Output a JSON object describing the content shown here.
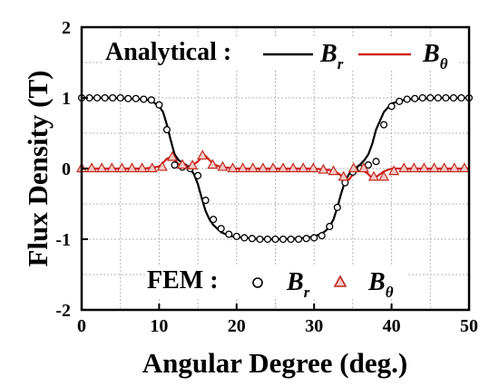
{
  "chart_data": {
    "type": "line",
    "xlabel": "Angular Degree (deg.)",
    "ylabel": "Flux Density (T)",
    "xlim": [
      0,
      50
    ],
    "ylim": [
      -2,
      2
    ],
    "xticks": [
      0,
      10,
      20,
      30,
      40,
      50
    ],
    "yticks": [
      2,
      1,
      0,
      -1,
      -2
    ],
    "grid": true,
    "legend": {
      "analytical_label": "Analytical :",
      "fem_label": "FEM :",
      "entries": [
        {
          "symbol": "B",
          "subscript": "r",
          "color": "#000000",
          "kind": "line"
        },
        {
          "symbol": "B",
          "subscript": "θ",
          "color": "#d0201c",
          "kind": "line"
        },
        {
          "symbol": "B",
          "subscript": "r",
          "color": "#000000",
          "kind": "circle"
        },
        {
          "symbol": "B",
          "subscript": "θ",
          "color": "#c0281c",
          "kind": "triangle"
        }
      ]
    },
    "series": [
      {
        "kind": "analytical-line",
        "color": "#000000",
        "x": [
          0,
          2,
          4,
          6,
          8,
          9,
          10,
          10.5,
          11,
          11.5,
          12,
          12.5,
          13,
          13.5,
          14,
          14.5,
          15,
          15.5,
          16,
          16.5,
          17,
          18,
          19,
          20,
          22,
          24,
          26,
          28,
          29,
          30,
          31,
          31.5,
          32,
          32.5,
          33,
          33.5,
          34,
          34.5,
          35,
          35.5,
          36,
          36.5,
          37,
          37.5,
          38,
          39,
          40,
          42,
          44,
          46,
          48,
          50
        ],
        "y": [
          1.0,
          1.0,
          1.0,
          0.99,
          0.98,
          0.96,
          0.88,
          0.8,
          0.62,
          0.4,
          0.2,
          0.12,
          0.08,
          0.05,
          0.0,
          -0.08,
          -0.22,
          -0.42,
          -0.6,
          -0.72,
          -0.8,
          -0.9,
          -0.95,
          -0.97,
          -0.99,
          -1.0,
          -1.0,
          -0.99,
          -0.98,
          -0.96,
          -0.92,
          -0.88,
          -0.82,
          -0.72,
          -0.55,
          -0.35,
          -0.18,
          -0.08,
          0.0,
          0.02,
          0.06,
          0.12,
          0.2,
          0.35,
          0.55,
          0.8,
          0.92,
          0.98,
          0.99,
          1.0,
          1.0,
          1.0
        ]
      },
      {
        "kind": "analytical-line",
        "color": "#d0201c",
        "x": [
          0,
          4,
          8,
          9,
          10,
          10.5,
          11,
          11.5,
          12,
          12.5,
          13,
          13.5,
          14,
          14.5,
          15,
          15.5,
          16,
          16.5,
          17,
          18,
          20,
          24,
          28,
          30,
          32,
          33,
          33.5,
          34,
          34.5,
          35,
          35.5,
          36,
          36.5,
          37,
          37.5,
          38,
          38.5,
          39,
          40,
          42,
          46,
          50
        ],
        "y": [
          0.0,
          0.0,
          0.0,
          0.01,
          0.03,
          0.08,
          0.14,
          0.16,
          0.12,
          0.06,
          0.05,
          0.04,
          0.02,
          0.06,
          0.1,
          0.16,
          0.18,
          0.12,
          0.06,
          0.02,
          0.0,
          0.0,
          0.0,
          0.0,
          -0.02,
          -0.06,
          -0.1,
          -0.14,
          -0.16,
          -0.08,
          -0.02,
          0.0,
          -0.04,
          -0.08,
          -0.14,
          -0.12,
          -0.08,
          -0.04,
          0.0,
          0.0,
          0.0,
          0.0
        ]
      },
      {
        "kind": "fem-circle",
        "color": "#000000",
        "x": [
          0,
          1,
          2,
          3,
          4,
          5,
          6,
          7,
          8,
          9,
          10,
          11,
          12,
          13,
          14,
          15,
          16,
          17,
          18,
          19,
          20,
          21,
          22,
          23,
          24,
          25,
          26,
          27,
          28,
          29,
          30,
          31,
          32,
          33,
          34,
          35,
          36,
          37,
          38,
          39,
          40,
          41,
          42,
          43,
          44,
          45,
          46,
          47,
          48,
          49,
          50
        ],
        "y": [
          1.0,
          1.0,
          1.0,
          1.0,
          1.0,
          1.0,
          0.99,
          0.99,
          0.98,
          0.97,
          0.9,
          0.55,
          0.05,
          0.02,
          0.0,
          -0.1,
          -0.45,
          -0.72,
          -0.85,
          -0.93,
          -0.96,
          -0.98,
          -0.99,
          -1.0,
          -1.0,
          -1.0,
          -1.0,
          -1.0,
          -1.0,
          -0.99,
          -0.98,
          -0.95,
          -0.82,
          -0.55,
          -0.2,
          -0.05,
          0.0,
          0.05,
          0.1,
          0.62,
          0.88,
          0.95,
          0.98,
          0.99,
          1.0,
          1.0,
          1.0,
          1.0,
          1.0,
          1.0,
          1.0
        ]
      },
      {
        "kind": "fem-triangle",
        "color": "#c0281c",
        "x": [
          0,
          1.3,
          2.6,
          3.9,
          5.2,
          6.5,
          7.8,
          9.1,
          10.4,
          11.7,
          13,
          14.3,
          15.6,
          16.9,
          18.2,
          19.5,
          20.8,
          22.1,
          23.4,
          24.7,
          26,
          27.3,
          28.6,
          29.9,
          31.2,
          32.5,
          33.8,
          35.1,
          36.4,
          37.7,
          39,
          40.3,
          41.6,
          42.9,
          44.2,
          45.5,
          46.8,
          48.1,
          49.4
        ],
        "y": [
          0.0,
          0.0,
          0.0,
          0.0,
          0.0,
          0.0,
          0.0,
          0.0,
          0.02,
          0.16,
          0.05,
          0.04,
          0.18,
          0.05,
          0.02,
          0.0,
          0.0,
          0.0,
          0.0,
          0.0,
          0.0,
          0.0,
          0.0,
          0.0,
          -0.02,
          -0.04,
          -0.12,
          0.0,
          0.0,
          -0.12,
          -0.12,
          -0.04,
          0.0,
          0.0,
          0.0,
          0.0,
          0.0,
          0.0,
          0.0
        ]
      }
    ]
  }
}
